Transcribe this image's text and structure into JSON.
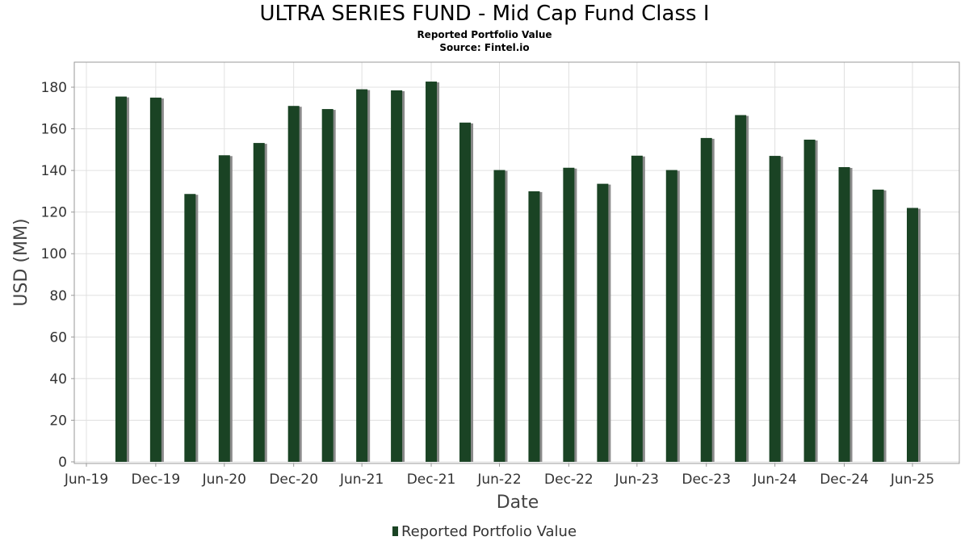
{
  "title": "ULTRA SERIES FUND - Mid Cap Fund Class I",
  "subtitle": "Reported Portfolio Value",
  "source": "Source: Fintel.io",
  "legend": {
    "label": "Reported Portfolio Value"
  },
  "colors": {
    "bar": "#1a4324",
    "bar_shadow": "#8a8a8a",
    "grid": "#e0e0e0",
    "axis": "#999999"
  },
  "chart_data": {
    "type": "bar",
    "xlabel": "Date",
    "ylabel": "USD (MM)",
    "ylim": [
      0,
      190
    ],
    "yticks": [
      0,
      20,
      40,
      60,
      80,
      100,
      120,
      140,
      160,
      180
    ],
    "xlim": [
      "2019-06-15",
      "2025-10-10"
    ],
    "xticks": [
      {
        "date": "2019-06-30",
        "label": "Jun-19"
      },
      {
        "date": "2019-12-31",
        "label": "Dec-19"
      },
      {
        "date": "2020-06-30",
        "label": "Jun-20"
      },
      {
        "date": "2020-12-31",
        "label": "Dec-20"
      },
      {
        "date": "2021-06-30",
        "label": "Jun-21"
      },
      {
        "date": "2021-12-31",
        "label": "Dec-21"
      },
      {
        "date": "2022-06-30",
        "label": "Jun-22"
      },
      {
        "date": "2022-12-31",
        "label": "Dec-22"
      },
      {
        "date": "2023-06-30",
        "label": "Jun-23"
      },
      {
        "date": "2023-12-31",
        "label": "Dec-23"
      },
      {
        "date": "2024-06-30",
        "label": "Jun-24"
      },
      {
        "date": "2024-12-31",
        "label": "Dec-24"
      },
      {
        "date": "2025-06-30",
        "label": "Jun-25"
      }
    ],
    "grid": true,
    "legend_position": "bottom",
    "series": [
      {
        "name": "Reported Portfolio Value",
        "points": [
          {
            "x": "2019-09-30",
            "y": 175.5
          },
          {
            "x": "2019-12-31",
            "y": 175.0
          },
          {
            "x": "2020-03-31",
            "y": 128.7
          },
          {
            "x": "2020-06-30",
            "y": 147.3
          },
          {
            "x": "2020-09-30",
            "y": 153.2
          },
          {
            "x": "2020-12-31",
            "y": 171.0
          },
          {
            "x": "2021-03-31",
            "y": 169.5
          },
          {
            "x": "2021-06-30",
            "y": 179.0
          },
          {
            "x": "2021-09-30",
            "y": 178.5
          },
          {
            "x": "2021-12-31",
            "y": 182.7
          },
          {
            "x": "2022-03-31",
            "y": 163.0
          },
          {
            "x": "2022-06-30",
            "y": 140.2
          },
          {
            "x": "2022-09-30",
            "y": 130.0
          },
          {
            "x": "2022-12-31",
            "y": 141.3
          },
          {
            "x": "2023-03-31",
            "y": 133.6
          },
          {
            "x": "2023-06-30",
            "y": 147.1
          },
          {
            "x": "2023-09-30",
            "y": 140.2
          },
          {
            "x": "2023-12-31",
            "y": 155.6
          },
          {
            "x": "2024-03-31",
            "y": 166.6
          },
          {
            "x": "2024-06-30",
            "y": 147.0
          },
          {
            "x": "2024-09-30",
            "y": 154.8
          },
          {
            "x": "2024-12-31",
            "y": 141.6
          },
          {
            "x": "2025-03-31",
            "y": 130.8
          },
          {
            "x": "2025-06-30",
            "y": 122.0
          }
        ]
      }
    ]
  }
}
